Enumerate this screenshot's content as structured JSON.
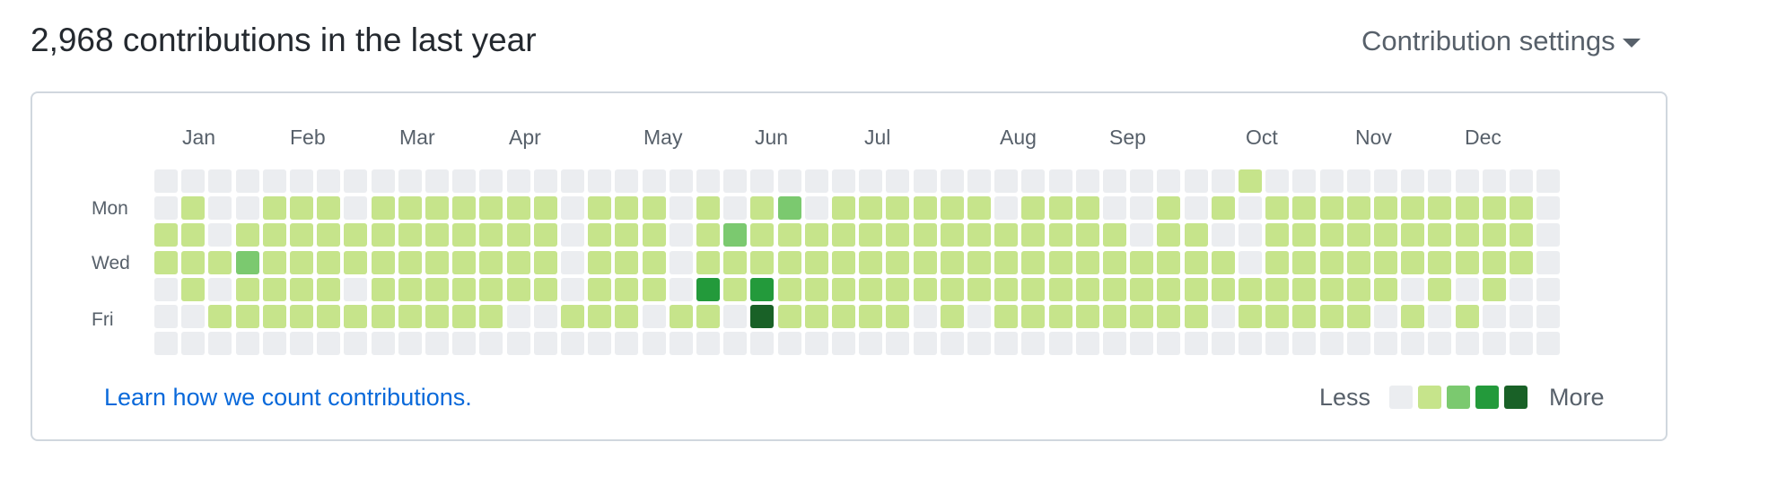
{
  "header": {
    "title": "2,968 contributions in the last year",
    "settings_label": "Contribution settings"
  },
  "calendar": {
    "months": [
      "Jan",
      "Feb",
      "Mar",
      "Apr",
      "May",
      "Jun",
      "Jul",
      "Aug",
      "Sep",
      "Oct",
      "Nov",
      "Dec"
    ],
    "day_labels": [
      "Mon",
      "Wed",
      "Fri"
    ],
    "colors": [
      "#ebedf0",
      "#c6e48b",
      "#7bc96f",
      "#239a3b",
      "#196127"
    ],
    "levels": [
      "0000000000000000000000000000000000000000100000000000",
      "0100111011111110111010120111111011100101011111111110",
      "1101111111111110111012111111111111110110011111111110",
      "1112111111111110111011111111111111111111011111111110",
      "0101111011111110111031311111111111111111111111010100",
      "0011111111111001110110411111010111111110111110101000",
      "0000000000000000000000000000000000000000000000000000"
    ]
  },
  "footer": {
    "learn_link": "Learn how we count contributions.",
    "legend_less": "Less",
    "legend_more": "More"
  }
}
